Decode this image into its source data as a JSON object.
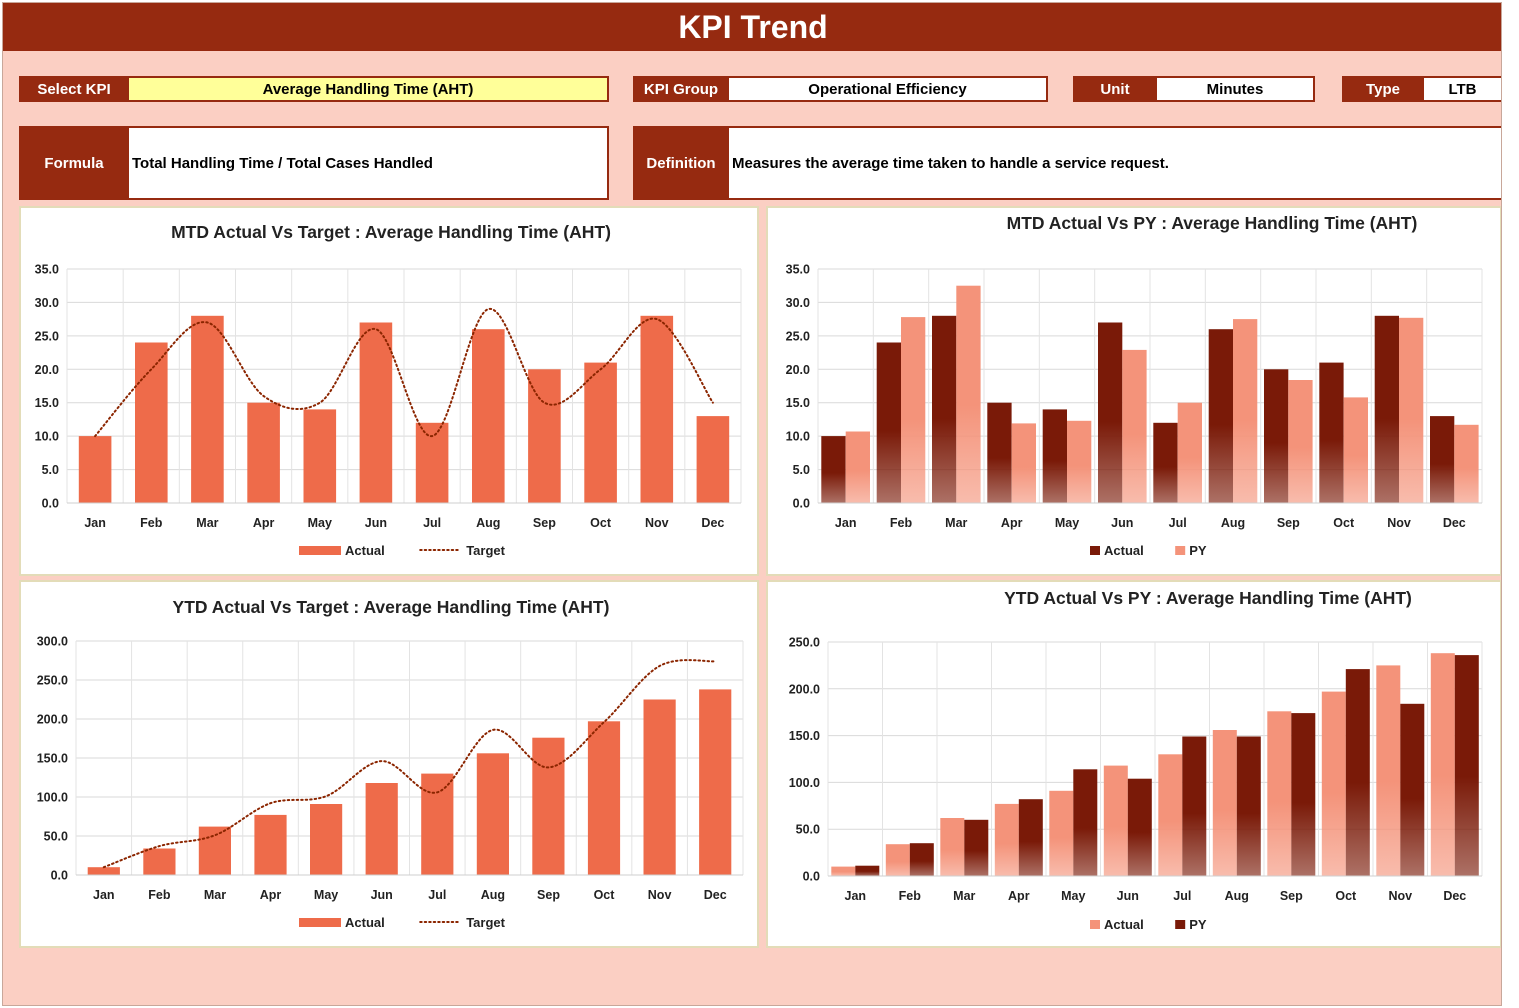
{
  "header": {
    "title": "KPI Trend"
  },
  "filters": {
    "select_kpi_label": "Select KPI",
    "select_kpi_value": "Average Handling Time (AHT)",
    "kpi_group_label": "KPI Group",
    "kpi_group_value": "Operational Efficiency",
    "unit_label": "Unit",
    "unit_value": "Minutes",
    "type_label": "Type",
    "type_value": "LTB"
  },
  "info": {
    "formula_label": "Formula",
    "formula_value": "Total Handling Time / Total Cases Handled",
    "definition_label": "Definition",
    "definition_value": "Measures the average time taken to handle a service request."
  },
  "colors": {
    "header": "#962a10",
    "actual_orange": "#ee6b4a",
    "target_line": "#8b2500",
    "dark_bar": "#7a1a08",
    "light_bar": "#f4937a",
    "background": "#fbcfc3"
  },
  "chart_data": [
    {
      "id": "mtd_target",
      "type": "bar",
      "title": "MTD Actual Vs Target : Average Handling Time (AHT)",
      "categories": [
        "Jan",
        "Feb",
        "Mar",
        "Apr",
        "May",
        "Jun",
        "Jul",
        "Aug",
        "Sep",
        "Oct",
        "Nov",
        "Dec"
      ],
      "ylim": [
        0,
        35
      ],
      "yticks": [
        "0.0",
        "5.0",
        "10.0",
        "15.0",
        "20.0",
        "25.0",
        "30.0",
        "35.0"
      ],
      "series": [
        {
          "name": "Actual",
          "kind": "bar",
          "color": "#ee6b4a",
          "values": [
            10,
            24,
            28,
            15,
            14,
            27,
            12,
            26,
            20,
            21,
            28,
            13
          ]
        },
        {
          "name": "Target",
          "kind": "dotted-line",
          "color": "#8b2500",
          "values": [
            10,
            20,
            27,
            16,
            15,
            26,
            10,
            29,
            15,
            20,
            27.5,
            15
          ]
        }
      ],
      "grid": true,
      "legend": "bottom"
    },
    {
      "id": "mtd_py",
      "type": "bar",
      "title": "MTD Actual Vs PY : Average Handling Time (AHT)",
      "categories": [
        "Jan",
        "Feb",
        "Mar",
        "Apr",
        "May",
        "Jun",
        "Jul",
        "Aug",
        "Sep",
        "Oct",
        "Nov",
        "Dec"
      ],
      "ylim": [
        0,
        35
      ],
      "yticks": [
        "0.0",
        "5.0",
        "10.0",
        "15.0",
        "20.0",
        "25.0",
        "30.0",
        "35.0"
      ],
      "series": [
        {
          "name": "Actual",
          "kind": "bar",
          "color": "#7a1a08",
          "values": [
            10,
            24,
            28,
            15,
            14,
            27,
            12,
            26,
            20,
            21,
            28,
            13
          ]
        },
        {
          "name": "PY",
          "kind": "bar",
          "color": "#f4937a",
          "values": [
            10.7,
            27.8,
            32.5,
            11.9,
            12.3,
            22.9,
            15,
            27.5,
            18.4,
            15.8,
            27.7,
            11.7
          ]
        }
      ],
      "grid": true,
      "legend": "bottom"
    },
    {
      "id": "ytd_target",
      "type": "bar",
      "title": "YTD Actual Vs Target : Average Handling Time (AHT)",
      "categories": [
        "Jan",
        "Feb",
        "Mar",
        "Apr",
        "May",
        "Jun",
        "Jul",
        "Aug",
        "Sep",
        "Oct",
        "Nov",
        "Dec"
      ],
      "ylim": [
        0,
        300
      ],
      "yticks": [
        "0.0",
        "50.0",
        "100.0",
        "150.0",
        "200.0",
        "250.0",
        "300.0"
      ],
      "series": [
        {
          "name": "Actual",
          "kind": "bar",
          "color": "#ee6b4a",
          "values": [
            10,
            34,
            62,
            77,
            91,
            118,
            130,
            156,
            176,
            197,
            225,
            238
          ]
        },
        {
          "name": "Target",
          "kind": "dotted-line",
          "color": "#8b2500",
          "values": [
            10,
            37,
            51,
            92,
            101,
            146,
            106,
            186,
            138,
            196,
            268,
            274
          ]
        }
      ],
      "grid": true,
      "legend": "bottom"
    },
    {
      "id": "ytd_py",
      "type": "bar",
      "title": "YTD Actual Vs PY : Average Handling Time (AHT)",
      "categories": [
        "Jan",
        "Feb",
        "Mar",
        "Apr",
        "May",
        "Jun",
        "Jul",
        "Aug",
        "Sep",
        "Oct",
        "Nov",
        "Dec"
      ],
      "ylim": [
        0,
        250
      ],
      "yticks": [
        "0.0",
        "50.0",
        "100.0",
        "150.0",
        "200.0",
        "250.0"
      ],
      "series": [
        {
          "name": "Actual",
          "kind": "bar",
          "color": "#f4937a",
          "values": [
            10,
            34,
            62,
            77,
            91,
            118,
            130,
            156,
            176,
            197,
            225,
            238
          ]
        },
        {
          "name": "PY",
          "kind": "bar",
          "color": "#7a1a08",
          "values": [
            11,
            35,
            60,
            82,
            114,
            104,
            149,
            149,
            174,
            221,
            184,
            236
          ]
        }
      ],
      "grid": true,
      "legend": "bottom"
    }
  ]
}
